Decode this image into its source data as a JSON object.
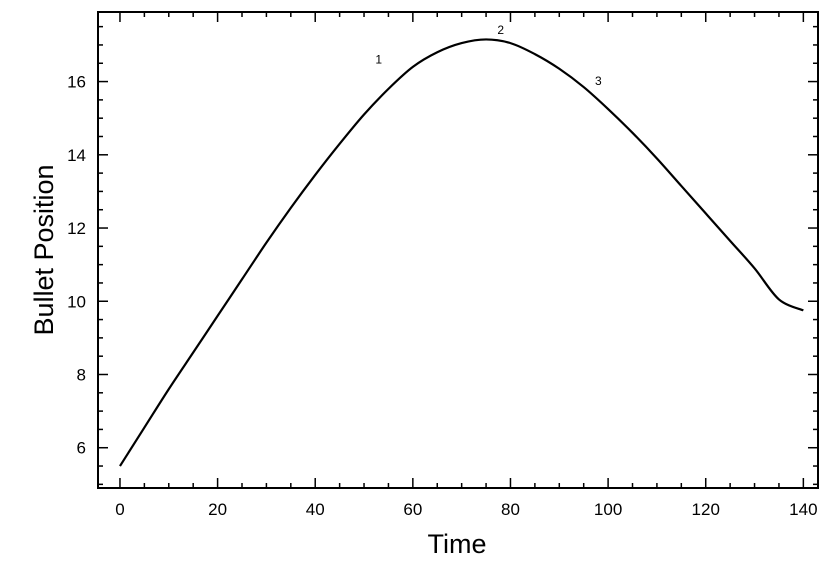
{
  "chart_data": {
    "type": "line",
    "title": "",
    "xlabel": "Time",
    "ylabel": "Bullet Position",
    "xlim": [
      -4.5,
      143
    ],
    "ylim": [
      4.9,
      17.9
    ],
    "grid": false,
    "x_ticks": [
      0,
      20,
      40,
      60,
      80,
      100,
      120,
      140
    ],
    "x_tick_labels": [
      "0",
      "20",
      "40",
      "60",
      "80",
      "100",
      "120",
      "140"
    ],
    "y_ticks": [
      6,
      8,
      10,
      12,
      14,
      16
    ],
    "y_tick_labels": [
      "6",
      "8",
      "10",
      "12",
      "14",
      "16"
    ],
    "x_minor_step": 5,
    "y_minor_step": 0.5,
    "series": [
      {
        "color": "#000000",
        "x": [
          0,
          5,
          10,
          15,
          20,
          25,
          30,
          35,
          40,
          45,
          50,
          55,
          60,
          65,
          70,
          75,
          80,
          85,
          90,
          95,
          100,
          105,
          110,
          115,
          120,
          125,
          130,
          135,
          140
        ],
        "y": [
          5.5,
          6.55,
          7.6,
          8.6,
          9.6,
          10.6,
          11.6,
          12.55,
          13.45,
          14.3,
          15.1,
          15.8,
          16.4,
          16.8,
          17.05,
          17.15,
          17.05,
          16.75,
          16.35,
          15.85,
          15.25,
          14.6,
          13.9,
          13.15,
          12.4,
          11.65,
          10.9,
          10.05,
          9.75
        ]
      }
    ],
    "annotations": [
      {
        "text": "1",
        "x": 53,
        "y": 16.5
      },
      {
        "text": "2",
        "x": 78,
        "y": 17.3
      },
      {
        "text": "3",
        "x": 98,
        "y": 15.9
      }
    ]
  }
}
